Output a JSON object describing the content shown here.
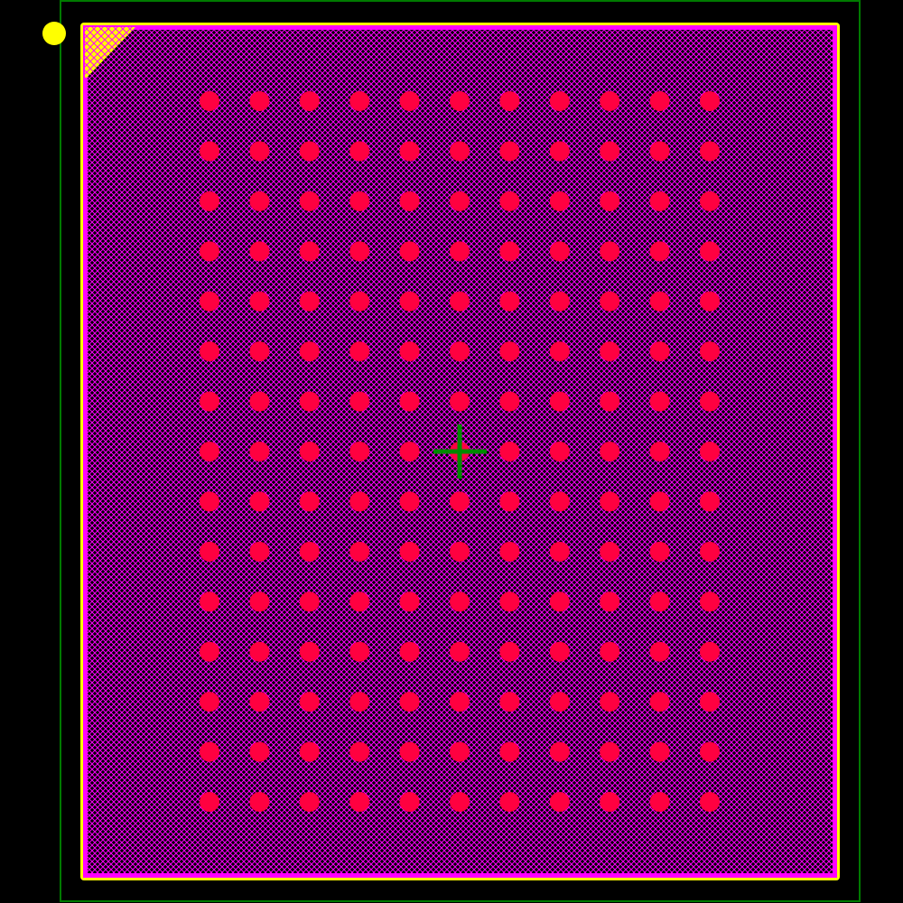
{
  "footprint": {
    "type": "BGA",
    "pad_columns": 11,
    "pad_rows": 15,
    "pad_count": 165
  },
  "colors": {
    "background": "#000000",
    "courtyard": "#007a00",
    "silkscreen": "#ffff00",
    "fab_outline": "#ff00ff",
    "body_hatch": "#ff00ff",
    "pads": "#ff0040",
    "pin1_marker": "#ffff00",
    "origin_cross": "#008a00"
  },
  "icons": {
    "pin1": "pin1-dot-icon",
    "origin": "crosshair-icon"
  }
}
